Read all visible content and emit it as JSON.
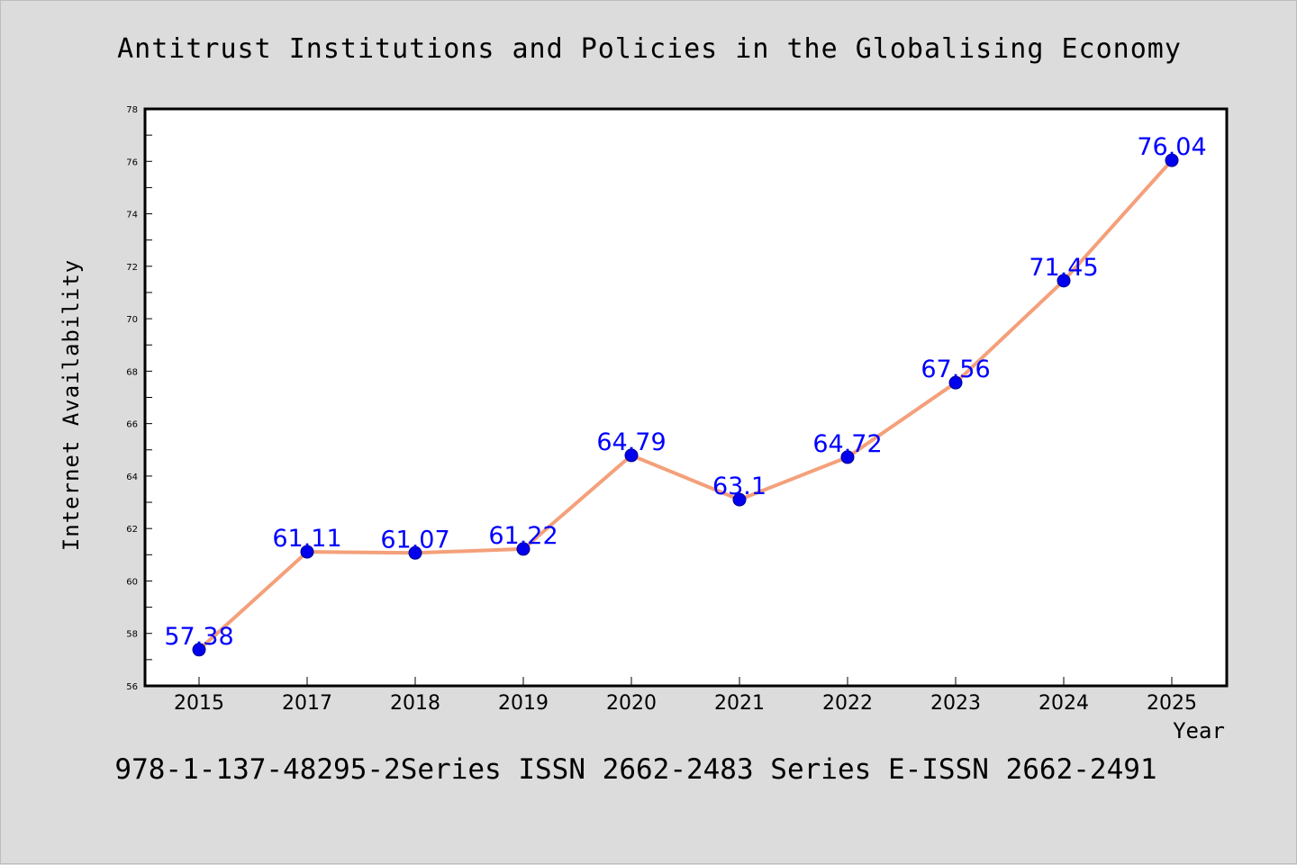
{
  "chart_data": {
    "type": "line",
    "title": "Antitrust Institutions and Policies in the Globalising Economy",
    "subtitle": "978-1-137-48295-2Series ISSN 2662-2483 Series E-ISSN 2662-2491",
    "xlabel": "Year",
    "ylabel": "Internet Availability",
    "categories": [
      "2015",
      "2017",
      "2018",
      "2019",
      "2020",
      "2021",
      "2022",
      "2023",
      "2024",
      "2025"
    ],
    "series": [
      {
        "values": [
          57.38,
          61.11,
          61.07,
          61.22,
          64.79,
          63.1,
          64.72,
          67.56,
          71.45,
          76.04
        ],
        "value_labels": [
          "57.38",
          "61.11",
          "61.07",
          "61.22",
          "64.79",
          "63.1",
          "64.72",
          "67.56",
          "71.45",
          "76.04"
        ]
      }
    ],
    "ylim": [
      56,
      78
    ],
    "yticks": [
      56,
      58,
      60,
      62,
      64,
      66,
      68,
      70,
      72,
      74,
      76,
      78
    ],
    "grid": false,
    "colors": {
      "line": "#f4a07a",
      "marker_fill": "#0000ee",
      "marker_stroke": "#00008b",
      "data_label": "#0000ff",
      "background": "#dcdcdc",
      "plot_background": "#ffffff"
    }
  }
}
